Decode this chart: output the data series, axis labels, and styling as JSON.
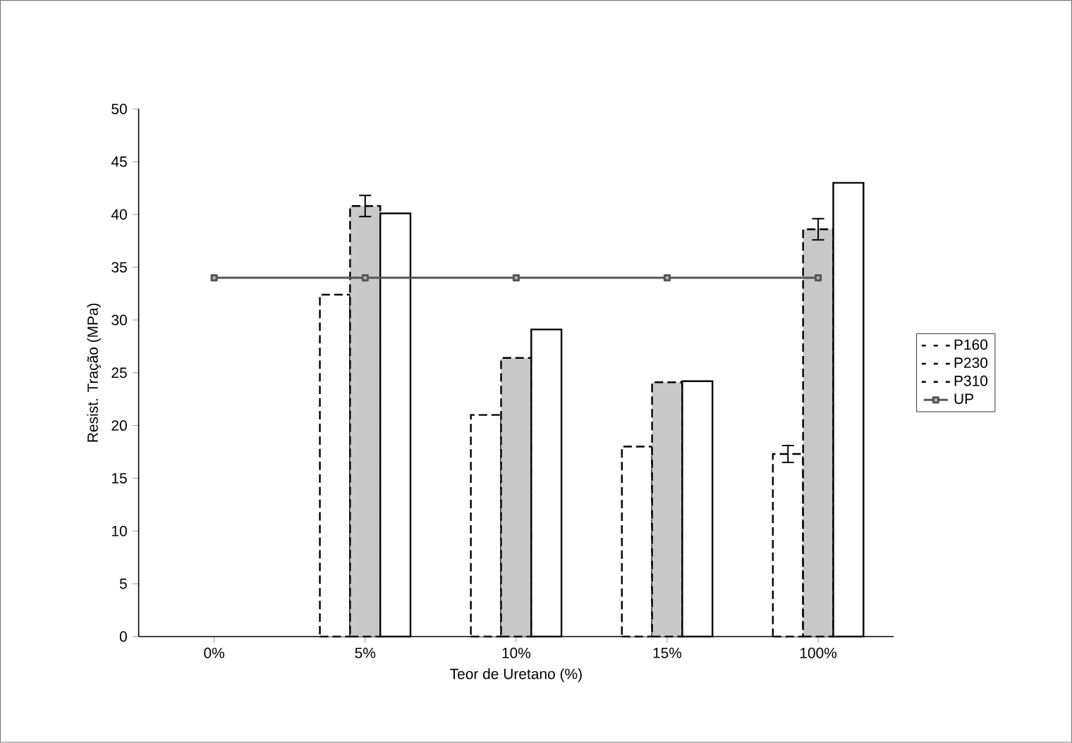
{
  "chart_data": {
    "type": "bar",
    "xlabel": "Teor de Uretano (%)",
    "ylabel": "Resist. Tração (MPa)",
    "categories": [
      "0%",
      "5%",
      "10%",
      "15%",
      "100%"
    ],
    "series": [
      {
        "name": "P160",
        "color": "#ffffff",
        "line_style": "dashed",
        "values": [
          null,
          32.4,
          21.0,
          18.0,
          17.3
        ],
        "errors": [
          null,
          null,
          null,
          null,
          0.8
        ]
      },
      {
        "name": "P230",
        "color": "#c8c8c8",
        "line_style": "dashed",
        "values": [
          null,
          40.8,
          26.4,
          24.1,
          38.6
        ],
        "errors": [
          null,
          1.0,
          null,
          null,
          1.0
        ]
      },
      {
        "name": "P310",
        "color": "#ffffff",
        "line_style": "solid",
        "values": [
          null,
          40.1,
          29.1,
          24.2,
          43.0
        ]
      },
      {
        "name": "UP",
        "type": "line",
        "color": "#555555",
        "marker": "square",
        "line_style": "solid",
        "values": [
          34,
          34,
          34,
          34,
          34
        ]
      }
    ],
    "ylim": [
      0,
      50
    ],
    "yticks": [
      0,
      5,
      10,
      15,
      20,
      25,
      30,
      35,
      40,
      45,
      50
    ],
    "legend": "right",
    "grid": false
  }
}
